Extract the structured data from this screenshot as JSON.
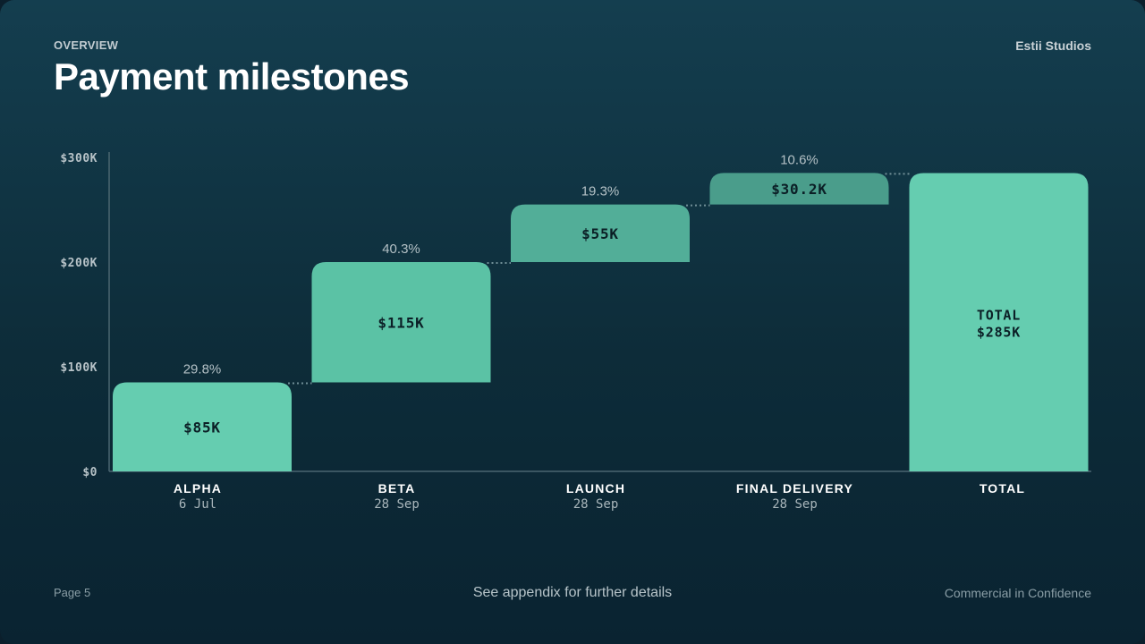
{
  "header": {
    "eyebrow": "OVERVIEW",
    "title": "Payment milestones",
    "brand": "Estii Studios"
  },
  "footer": {
    "page": "Page 5",
    "note": "See appendix for further details",
    "confidentiality": "Commercial in Confidence"
  },
  "colors": {
    "bar_colors": [
      "#65cdb0",
      "#5bc2a5",
      "#52ae98",
      "#4a9d8b",
      "#65cdb0"
    ],
    "axis": "#4b6670",
    "connector": "#6f8e96"
  },
  "chart_data": {
    "type": "bar",
    "subtype": "waterfall",
    "ylim": [
      0,
      300000
    ],
    "y_ticks": [
      {
        "value": 0,
        "label": "$0"
      },
      {
        "value": 100000,
        "label": "$100K"
      },
      {
        "value": 200000,
        "label": "$200K"
      },
      {
        "value": 300000,
        "label": "$300K"
      }
    ],
    "milestones": [
      {
        "name": "ALPHA",
        "date": "6 Jul",
        "value": 85000,
        "value_label": "$85K",
        "percent_label": "29.8%"
      },
      {
        "name": "BETA",
        "date": "28 Sep",
        "value": 115000,
        "value_label": "$115K",
        "percent_label": "40.3%"
      },
      {
        "name": "LAUNCH",
        "date": "28 Sep",
        "value": 55000,
        "value_label": "$55K",
        "percent_label": "19.3%"
      },
      {
        "name": "FINAL DELIVERY",
        "date": "28 Sep",
        "value": 30200,
        "value_label": "$30.2K",
        "percent_label": "10.6%"
      }
    ],
    "total": {
      "name": "TOTAL",
      "label_line1": "TOTAL",
      "label_line2": "$285K",
      "value": 285000
    }
  }
}
